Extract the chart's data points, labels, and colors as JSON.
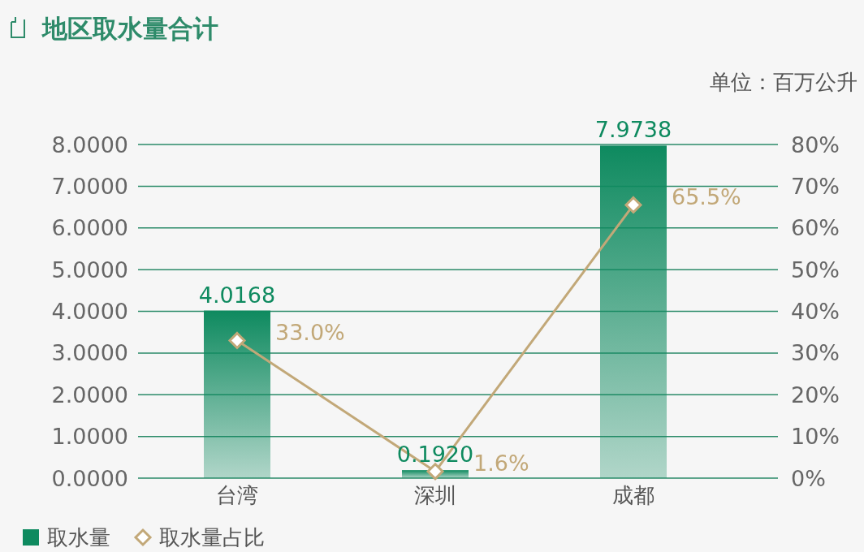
{
  "chart_data": {
    "type": "bar",
    "title": "地区取水量合计",
    "annotations": [
      "单位：百万公升"
    ],
    "categories": [
      "台湾",
      "深圳",
      "成都"
    ],
    "series": [
      {
        "name": "取水量",
        "color": "#0e8a5f",
        "values": [
          4.0168,
          0.192,
          7.9738
        ],
        "value_labels": [
          "4.0168",
          "0.1920",
          "7.9738"
        ]
      },
      {
        "name": "取水量占比",
        "type": "line",
        "axis": "y2",
        "color": "#c2a878",
        "marker": "diamond",
        "values": [
          33.0,
          1.6,
          65.5
        ],
        "value_labels": [
          "33.0%",
          "1.6%",
          "65.5%"
        ]
      }
    ],
    "ylim": [
      0,
      8
    ],
    "yticks": [
      {
        "value": 0,
        "label": "0.0000"
      },
      {
        "value": 1,
        "label": "1.0000"
      },
      {
        "value": 2,
        "label": "2.0000"
      },
      {
        "value": 3,
        "label": "3.0000"
      },
      {
        "value": 4,
        "label": "4.0000"
      },
      {
        "value": 5,
        "label": "5.0000"
      },
      {
        "value": 6,
        "label": "6.0000"
      },
      {
        "value": 7,
        "label": "7.0000"
      },
      {
        "value": 8,
        "label": "8.0000"
      }
    ],
    "y2lim": [
      0,
      80
    ],
    "y2ticks": [
      {
        "value": 0,
        "label": "0%"
      },
      {
        "value": 10,
        "label": "10%"
      },
      {
        "value": 20,
        "label": "20%"
      },
      {
        "value": 30,
        "label": "30%"
      },
      {
        "value": 40,
        "label": "40%"
      },
      {
        "value": 50,
        "label": "50%"
      },
      {
        "value": 60,
        "label": "60%"
      },
      {
        "value": 70,
        "label": "70%"
      },
      {
        "value": 80,
        "label": "80%"
      }
    ],
    "grid": "y",
    "legend": "bottom left"
  }
}
